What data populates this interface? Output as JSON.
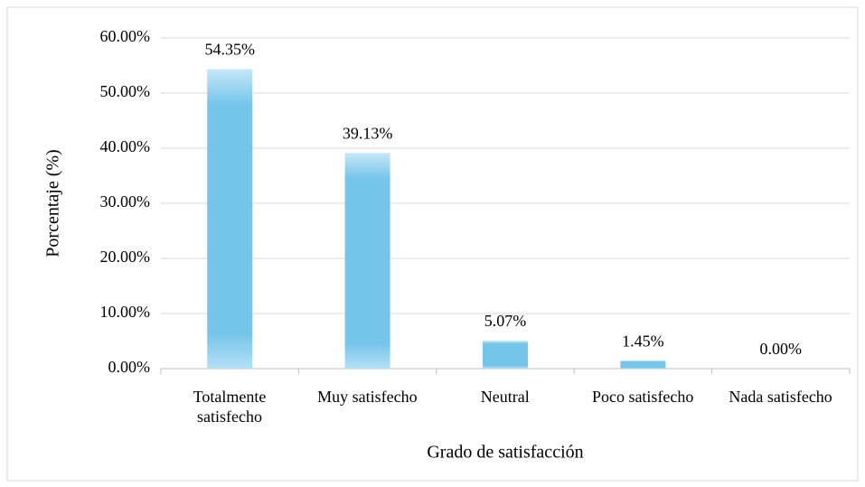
{
  "chart_data": {
    "type": "bar",
    "categories": [
      "Totalmente satisfecho",
      "Muy satisfecho",
      "Neutral",
      "Poco satisfecho",
      "Nada satisfecho"
    ],
    "values": [
      54.35,
      39.13,
      5.07,
      1.45,
      0
    ],
    "value_labels": [
      "54.35%",
      "39.13%",
      "5.07%",
      "1.45%",
      "0.00%"
    ],
    "color": "#75c4ea",
    "ylim": [
      0,
      60
    ],
    "yticks": [
      {
        "value": 0,
        "label": "0.00%"
      },
      {
        "value": 10,
        "label": "10.00%"
      },
      {
        "value": 20,
        "label": "20.00%"
      },
      {
        "value": 30,
        "label": "30.00%"
      },
      {
        "value": 40,
        "label": "40.00%"
      },
      {
        "value": 50,
        "label": "50.00%"
      },
      {
        "value": 60,
        "label": "60.00%"
      }
    ],
    "ylabel": "Porcentaje (%)",
    "xlabel": "Grado de satisfacción",
    "grid": true
  }
}
